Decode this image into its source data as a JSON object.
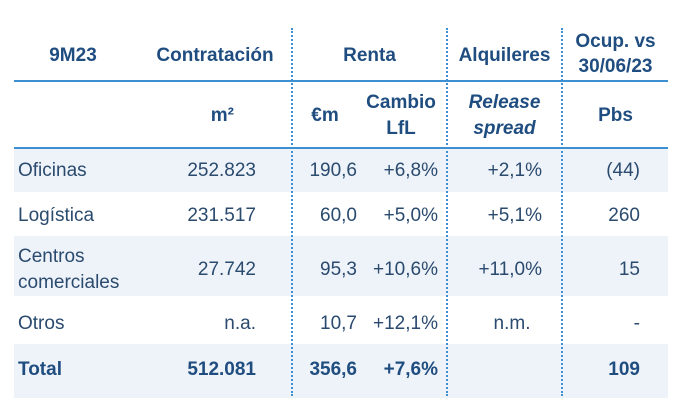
{
  "headers": {
    "period": "9M23",
    "contratacion": "Contratación",
    "renta": "Renta",
    "alquileres": "Alquileres",
    "ocup_line1": "Ocup. vs",
    "ocup_line2": "30/06/23"
  },
  "subheaders": {
    "m2": "m²",
    "eur_m": "€m",
    "cambio_line1": "Cambio",
    "cambio_line2": "LfL",
    "release_line1": "Release",
    "release_line2": "spread",
    "pbs": "Pbs"
  },
  "rows": [
    {
      "label_1": "Oficinas",
      "label_2": "",
      "contratacion": "252.823",
      "renta": "190,6",
      "cambio": "+6,8%",
      "release": "+2,1%",
      "ocup": "(44)"
    },
    {
      "label_1": "Logística",
      "label_2": "",
      "contratacion": "231.517",
      "renta": "60,0",
      "cambio": "+5,0%",
      "release": "+5,1%",
      "ocup": "260"
    },
    {
      "label_1": "Centros",
      "label_2": "comerciales",
      "contratacion": "27.742",
      "renta": "95,3",
      "cambio": "+10,6%",
      "release": "+11,0%",
      "ocup": "15"
    },
    {
      "label_1": "Otros",
      "label_2": "",
      "contratacion": "n.a.",
      "renta": "10,7",
      "cambio": "+12,1%",
      "release": "n.m.",
      "ocup": "-"
    }
  ],
  "total": {
    "label": "Total",
    "contratacion": "512.081",
    "renta": "356,6",
    "cambio": "+7,6%",
    "release": "",
    "ocup": "109"
  },
  "colors": {
    "header_text": "#1f4d80",
    "body_text": "#2a4a6e",
    "band": "#eef3f9",
    "rule": "#3c8fd0"
  }
}
